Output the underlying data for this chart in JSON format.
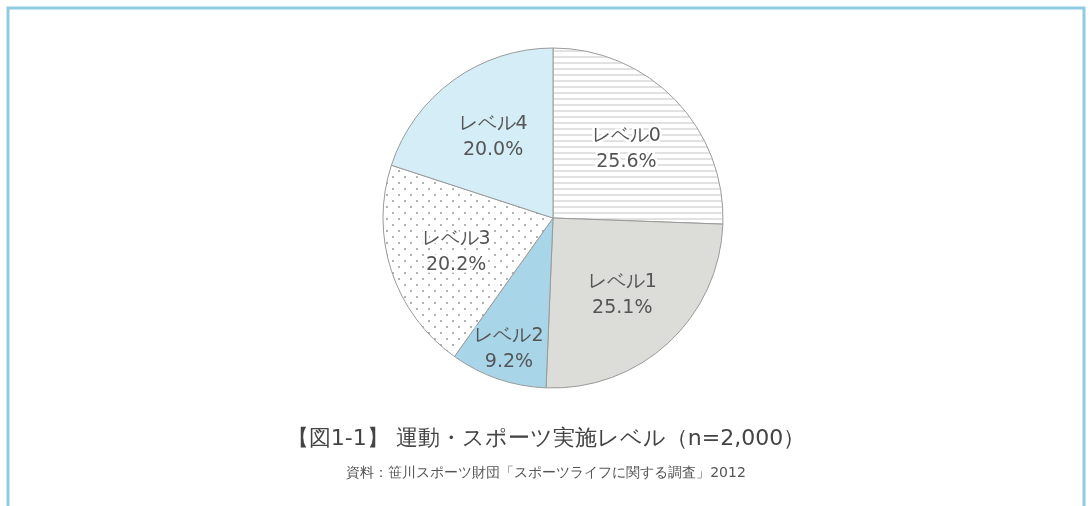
{
  "chart_data": {
    "type": "pie",
    "title": "【図1-1】 運動・スポーツ実施レベル（n=2,000）",
    "annotations": [
      "資料：笹川スポーツ財団「スポーツライフに関する調査」2012"
    ],
    "categories": [
      "レベル0",
      "レベル1",
      "レベル2",
      "レベル3",
      "レベル4"
    ],
    "values": [
      25.6,
      25.1,
      9.2,
      20.2,
      20.0
    ],
    "value_labels": [
      "25.6%",
      "25.1%",
      "9.2%",
      "20.2%",
      "20.0%"
    ],
    "colors": [
      "#ffffff",
      "#dcdcd9",
      "#a8d5e8",
      "#ffffff",
      "#d4edf7"
    ]
  }
}
